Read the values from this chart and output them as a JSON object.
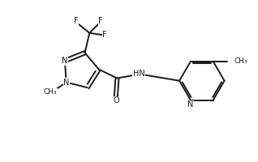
{
  "bg_color": "#ffffff",
  "line_color": "#1a1a1a",
  "line_width": 1.4,
  "font_size": 7.0,
  "fig_width": 3.18,
  "fig_height": 2.0,
  "dpi": 100,
  "xlim": [
    0,
    10
  ],
  "ylim": [
    0,
    6.28
  ]
}
